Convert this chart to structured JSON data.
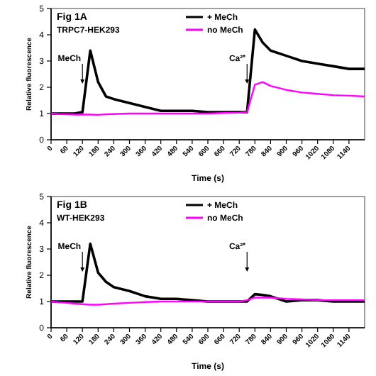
{
  "chart_data": [
    {
      "type": "line",
      "title": "Fig 1A",
      "subtitle": "TRPC7-HEK293",
      "xlabel": "Time (s)",
      "ylabel": "Relative fluorescence",
      "legend": "top",
      "grid": false,
      "marker": "none",
      "line_style": "solid",
      "xlim": [
        0,
        1200
      ],
      "xticks": [
        0,
        60,
        120,
        180,
        240,
        300,
        360,
        420,
        480,
        540,
        600,
        660,
        720,
        780,
        840,
        900,
        960,
        1020,
        1080,
        1140
      ],
      "ylim": [
        0,
        5
      ],
      "yticks": [
        0,
        1,
        2,
        3,
        4,
        5
      ],
      "x": [
        0,
        30,
        60,
        90,
        120,
        150,
        180,
        210,
        240,
        300,
        360,
        420,
        480,
        540,
        600,
        660,
        720,
        750,
        780,
        810,
        840,
        900,
        960,
        1020,
        1080,
        1140,
        1200
      ],
      "series": [
        {
          "name": "+ MeCh",
          "color": "#000000",
          "values": [
            1,
            1,
            1,
            1,
            1.05,
            3.4,
            2.2,
            1.65,
            1.55,
            1.4,
            1.25,
            1.1,
            1.1,
            1.1,
            1.05,
            1.05,
            1.05,
            1.05,
            4.2,
            3.7,
            3.4,
            3.2,
            3.0,
            2.9,
            2.8,
            2.7,
            2.7
          ]
        },
        {
          "name": "no MeCh",
          "color": "#ff00ff",
          "values": [
            1,
            0.98,
            0.97,
            0.96,
            0.96,
            0.96,
            0.95,
            0.97,
            0.98,
            1,
            1,
            1,
            1,
            1,
            1,
            1.02,
            1.03,
            1.05,
            2.1,
            2.2,
            2.05,
            1.9,
            1.8,
            1.75,
            1.7,
            1.68,
            1.65
          ]
        }
      ],
      "annotations": [
        "MeCh",
        "Ca²⁺"
      ]
    },
    {
      "type": "line",
      "title": "Fig 1B",
      "subtitle": "WT-HEK293",
      "xlabel": "Time (s)",
      "ylabel": "Relative fluorescence",
      "legend": "top",
      "grid": false,
      "marker": "none",
      "line_style": "solid",
      "xlim": [
        0,
        1200
      ],
      "xticks": [
        0,
        60,
        120,
        180,
        240,
        300,
        360,
        420,
        480,
        540,
        600,
        660,
        720,
        780,
        840,
        900,
        960,
        1020,
        1080,
        1140
      ],
      "ylim": [
        0,
        5
      ],
      "yticks": [
        0,
        1,
        2,
        3,
        4,
        5
      ],
      "x": [
        0,
        30,
        60,
        90,
        120,
        150,
        180,
        210,
        240,
        300,
        360,
        420,
        480,
        540,
        600,
        660,
        720,
        750,
        780,
        810,
        840,
        900,
        960,
        1020,
        1080,
        1140,
        1200
      ],
      "series": [
        {
          "name": "+ MeCh",
          "color": "#000000",
          "values": [
            1,
            1,
            1,
            1,
            1,
            3.2,
            2.1,
            1.75,
            1.55,
            1.4,
            1.2,
            1.1,
            1.1,
            1.05,
            1,
            1,
            1,
            1,
            1.28,
            1.25,
            1.2,
            1,
            1.05,
            1.05,
            1,
            1,
            1
          ]
        },
        {
          "name": "no MeCh",
          "color": "#ff00ff",
          "values": [
            1,
            0.97,
            0.95,
            0.92,
            0.9,
            0.88,
            0.88,
            0.9,
            0.92,
            0.95,
            0.98,
            1,
            1,
            1,
            1,
            1,
            1,
            1.05,
            1.15,
            1.15,
            1.15,
            1.1,
            1.08,
            1.05,
            1.05,
            1.05,
            1.05
          ]
        }
      ],
      "annotations": [
        "MeCh",
        "Ca²⁺"
      ]
    }
  ]
}
